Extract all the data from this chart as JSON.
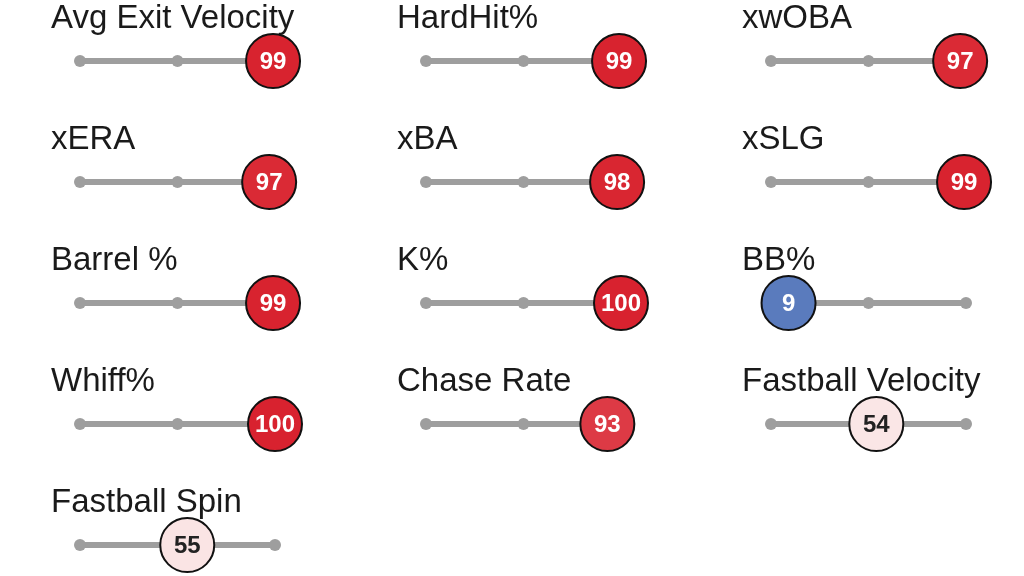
{
  "chart_data": [
    {
      "type": "other",
      "title": "Avg Exit Velocity",
      "values": [
        99
      ],
      "colors": [
        "#d8232f"
      ],
      "data_labels": true
    },
    {
      "type": "other",
      "title": "HardHit%",
      "values": [
        99
      ],
      "colors": [
        "#d8232f"
      ],
      "data_labels": true
    },
    {
      "type": "other",
      "title": "xwOBA",
      "values": [
        97
      ],
      "colors": [
        "#da2a35"
      ],
      "data_labels": true
    },
    {
      "type": "other",
      "title": "xERA",
      "values": [
        97
      ],
      "colors": [
        "#da2a35"
      ],
      "data_labels": true
    },
    {
      "type": "other",
      "title": "xBA",
      "values": [
        98
      ],
      "colors": [
        "#d92631"
      ],
      "data_labels": true
    },
    {
      "type": "other",
      "title": "xSLG",
      "values": [
        99
      ],
      "colors": [
        "#d8232f"
      ],
      "data_labels": true
    },
    {
      "type": "other",
      "title": "Barrel %",
      "values": [
        99
      ],
      "colors": [
        "#d8232f"
      ],
      "data_labels": true
    },
    {
      "type": "other",
      "title": "K%",
      "values": [
        100
      ],
      "colors": [
        "#d8222f"
      ],
      "data_labels": true
    },
    {
      "type": "other",
      "title": "BB%",
      "values": [
        9
      ],
      "colors": [
        "#5a7bbd"
      ],
      "data_labels": true
    },
    {
      "type": "other",
      "title": "Whiff%",
      "values": [
        100
      ],
      "colors": [
        "#d8222f"
      ],
      "data_labels": true
    },
    {
      "type": "other",
      "title": "Chase Rate",
      "values": [
        93
      ],
      "colors": [
        "#dd3a45"
      ],
      "data_labels": true
    },
    {
      "type": "other",
      "title": "Fastball Velocity",
      "values": [
        54
      ],
      "colors": [
        "#fae6e6"
      ],
      "data_labels": true
    },
    {
      "type": "other",
      "title": "Fastball Spin",
      "values": [
        55
      ],
      "colors": [
        "#fae4e4"
      ],
      "data_labels": true
    }
  ]
}
